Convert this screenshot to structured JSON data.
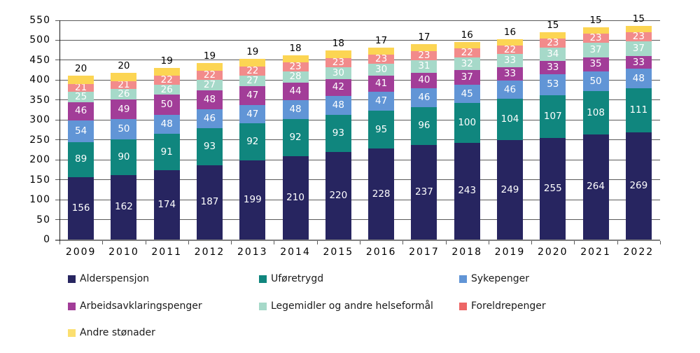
{
  "chart_data": {
    "type": "bar",
    "stacked": true,
    "title": "",
    "xlabel": "",
    "ylabel": "",
    "categories": [
      "2009",
      "2010",
      "2011",
      "2012",
      "2013",
      "2014",
      "2015",
      "2016",
      "2017",
      "2018",
      "2019",
      "2020",
      "2021",
      "2022"
    ],
    "series": [
      {
        "name": "Alderspensjon",
        "color": "#272560",
        "label_position": "inside",
        "values": [
          156,
          162,
          174,
          187,
          199,
          210,
          220,
          228,
          237,
          243,
          249,
          255,
          264,
          269
        ]
      },
      {
        "name": "Uføretrygd",
        "color": "#10867E",
        "label_position": "inside",
        "values": [
          89,
          90,
          91,
          93,
          92,
          92,
          93,
          95,
          96,
          100,
          104,
          107,
          108,
          111
        ]
      },
      {
        "name": "Sykepenger",
        "color": "#6195D6",
        "label_position": "inside",
        "values": [
          54,
          50,
          48,
          46,
          47,
          48,
          48,
          47,
          46,
          45,
          46,
          53,
          50,
          48
        ]
      },
      {
        "name": "Arbeidsavklaringspenger",
        "color": "#A23D98",
        "label_position": "inside",
        "values": [
          46,
          49,
          50,
          48,
          47,
          44,
          42,
          41,
          40,
          37,
          33,
          33,
          35,
          33
        ]
      },
      {
        "name": "Legemidler og andre helseformål",
        "color": "#A6D9C9",
        "label_position": "inside",
        "values": [
          25,
          26,
          26,
          27,
          27,
          28,
          30,
          30,
          31,
          32,
          33,
          34,
          37,
          37
        ]
      },
      {
        "name": "Foreldrepenger",
        "color": "#F28B8B",
        "legend_color": "#ED6666",
        "label_position": "inside",
        "values": [
          21,
          21,
          22,
          22,
          22,
          23,
          23,
          23,
          23,
          22,
          22,
          23,
          23,
          23
        ]
      },
      {
        "name": "Andre stønader",
        "color": "#FCD553",
        "legend_color": "#FBDF70",
        "label_position": "outside-top",
        "values": [
          20,
          20,
          19,
          19,
          19,
          18,
          18,
          17,
          17,
          16,
          16,
          15,
          15,
          15
        ]
      }
    ],
    "y_axis": {
      "min": 0,
      "max": 550,
      "step": 50,
      "tick_labels": [
        "0",
        "50",
        "100",
        "150",
        "200",
        "250",
        "300",
        "350",
        "400",
        "450",
        "500",
        "550"
      ]
    },
    "grid": true,
    "grid_color": "#595959",
    "axis_color": "#808080",
    "label_text_color_inside": "#ffffff",
    "label_text_color_outside": "#000000",
    "legend_position": "bottom",
    "legend_rows": [
      [
        "Alderspensjon",
        "Uføretrygd",
        "Sykepenger"
      ],
      [
        "Arbeidsavklaringspenger",
        "Legemidler og andre helseformål",
        "Foreldrepenger"
      ],
      [
        "Andre stønader"
      ]
    ]
  }
}
